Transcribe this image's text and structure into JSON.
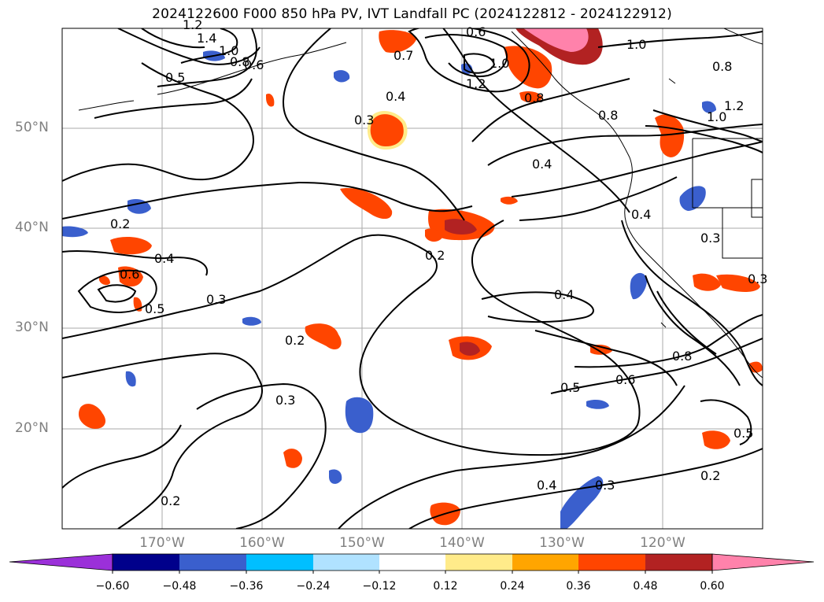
{
  "title": "2024122600 F000 850 hPa PV, IVT Landfall PC (2024122812 - 2024122912)",
  "lat_labels": [
    "50°N",
    "40°N",
    "30°N",
    "20°N"
  ],
  "lon_labels": [
    "170°W",
    "160°W",
    "150°W",
    "140°W",
    "130°W",
    "120°W"
  ],
  "contour_labels": [
    "1.4",
    "1.2",
    "1.0",
    "0.8",
    "0.6",
    "0.5",
    "0.7",
    "0.4",
    "0.3",
    "1.0",
    "1.2",
    "0.8",
    "0.6",
    "1.0",
    "0.8",
    "1.2",
    "1.0",
    "0.8",
    "0.4",
    "0.4",
    "0.3",
    "0.2",
    "0.2",
    "0.4",
    "0.6",
    "0.5",
    "0.3",
    "0.4",
    "0.2",
    "0.8",
    "0.6",
    "0.5",
    "0.3",
    "0.4",
    "0.3",
    "0.2",
    "0.5",
    "0.2",
    "0.3"
  ],
  "colorbar": {
    "ticks": [
      "−0.60",
      "−0.48",
      "−0.36",
      "−0.24",
      "−0.12",
      "0.12",
      "0.24",
      "0.36",
      "0.48",
      "0.60"
    ],
    "colors": [
      "#9b30d9",
      "#00008b",
      "#3a5fcd",
      "#00bfff",
      "#b0e2ff",
      "#ffffff",
      "#ffeb8a",
      "#ffa500",
      "#ff4500",
      "#b22222",
      "#ff82ab"
    ]
  },
  "map_extent": {
    "lon": [
      -180,
      -110
    ],
    "lat": [
      10,
      60
    ]
  },
  "graticule": {
    "lon": [
      -170,
      -160,
      -150,
      -140,
      -130,
      -120
    ],
    "lat": [
      20,
      30,
      40,
      50
    ]
  }
}
